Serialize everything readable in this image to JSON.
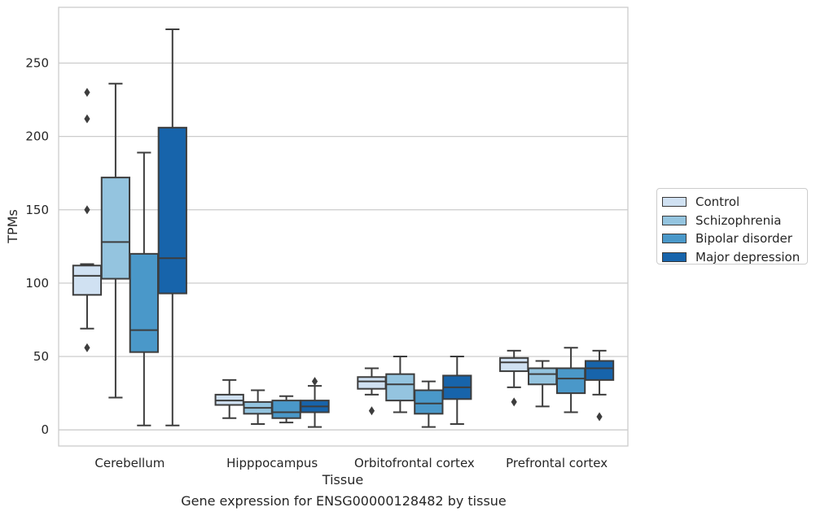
{
  "chart_data": {
    "type": "box",
    "title": "",
    "xlabel": "Tissue",
    "ylabel": "TPMs",
    "caption": "Gene expression for ENSG00000128482 by tissue",
    "ylim": [
      -11,
      288
    ],
    "yticks": [
      0,
      50,
      100,
      150,
      200,
      250
    ],
    "grid": "horizontal",
    "legend_position": "right",
    "categories": [
      "Cerebellum",
      "Hipppocampus",
      "Orbitofrontal cortex",
      "Prefrontal cortex"
    ],
    "series": [
      {
        "name": "Control",
        "color": "#d0e1f2",
        "boxes": [
          {
            "whisker_low": 69,
            "q1": 92,
            "median": 105,
            "q3": 112,
            "whisker_high": 113,
            "outliers": [
              56,
              150,
              212,
              230
            ]
          },
          {
            "whisker_low": 8,
            "q1": 17,
            "median": 20,
            "q3": 24,
            "whisker_high": 34,
            "outliers": []
          },
          {
            "whisker_low": 24,
            "q1": 28,
            "median": 33,
            "q3": 36,
            "whisker_high": 42,
            "outliers": [
              13
            ]
          },
          {
            "whisker_low": 29,
            "q1": 40,
            "median": 46,
            "q3": 49,
            "whisker_high": 54,
            "outliers": [
              19
            ]
          }
        ]
      },
      {
        "name": "Schizophrenia",
        "color": "#94c4df",
        "boxes": [
          {
            "whisker_low": 22,
            "q1": 103,
            "median": 128,
            "q3": 172,
            "whisker_high": 236,
            "outliers": []
          },
          {
            "whisker_low": 4,
            "q1": 11,
            "median": 15,
            "q3": 19,
            "whisker_high": 27,
            "outliers": []
          },
          {
            "whisker_low": 12,
            "q1": 20,
            "median": 31,
            "q3": 38,
            "whisker_high": 50,
            "outliers": []
          },
          {
            "whisker_low": 16,
            "q1": 31,
            "median": 38,
            "q3": 42,
            "whisker_high": 47,
            "outliers": []
          }
        ]
      },
      {
        "name": "Bipolar disorder",
        "color": "#4a98c9",
        "boxes": [
          {
            "whisker_low": 3,
            "q1": 53,
            "median": 68,
            "q3": 120,
            "whisker_high": 189,
            "outliers": []
          },
          {
            "whisker_low": 5,
            "q1": 8,
            "median": 12,
            "q3": 20,
            "whisker_high": 23,
            "outliers": []
          },
          {
            "whisker_low": 2,
            "q1": 11,
            "median": 18,
            "q3": 27,
            "whisker_high": 33,
            "outliers": []
          },
          {
            "whisker_low": 12,
            "q1": 25,
            "median": 35,
            "q3": 42,
            "whisker_high": 56,
            "outliers": []
          }
        ]
      },
      {
        "name": "Major depression",
        "color": "#1764ab",
        "boxes": [
          {
            "whisker_low": 3,
            "q1": 93,
            "median": 117,
            "q3": 206,
            "whisker_high": 273,
            "outliers": []
          },
          {
            "whisker_low": 2,
            "q1": 12,
            "median": 16,
            "q3": 20,
            "whisker_high": 30,
            "outliers": [
              33
            ]
          },
          {
            "whisker_low": 4,
            "q1": 21,
            "median": 29,
            "q3": 37,
            "whisker_high": 50,
            "outliers": []
          },
          {
            "whisker_low": 24,
            "q1": 34,
            "median": 42,
            "q3": 47,
            "whisker_high": 54,
            "outliers": [
              9
            ]
          }
        ]
      }
    ]
  }
}
